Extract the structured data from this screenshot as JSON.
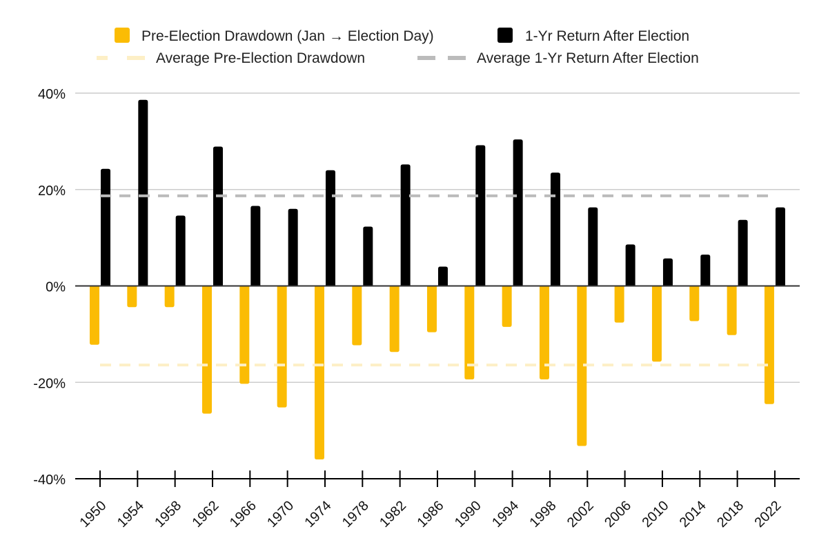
{
  "chart_data": {
    "type": "bar",
    "title": "",
    "xlabel": "",
    "ylabel": "",
    "ylim": [
      -40,
      40
    ],
    "yticks": [
      40,
      20,
      0,
      -20,
      -40
    ],
    "ytick_labels": [
      "40%",
      "20%",
      "0%",
      "-20%",
      "-40%"
    ],
    "grid": true,
    "legend_position": "top",
    "categories": [
      "1950",
      "1954",
      "1958",
      "1962",
      "1966",
      "1970",
      "1974",
      "1978",
      "1982",
      "1986",
      "1990",
      "1994",
      "1998",
      "2002",
      "2006",
      "2010",
      "2014",
      "2018",
      "2022"
    ],
    "series": [
      {
        "name": "Pre-Election Drawdown (Jan → Election Day)",
        "color": "#FBBC04",
        "values": [
          -12.2,
          -4.4,
          -4.4,
          -26.5,
          -20.3,
          -25.2,
          -36.0,
          -12.3,
          -13.7,
          -9.6,
          -19.4,
          -8.5,
          -19.4,
          -33.2,
          -7.6,
          -15.7,
          -7.3,
          -10.2,
          -24.5
        ]
      },
      {
        "name": "1-Yr Return After Election",
        "color": "#000000",
        "values": [
          24.3,
          38.6,
          14.6,
          28.9,
          16.6,
          16.0,
          24.0,
          12.3,
          25.2,
          4.0,
          29.2,
          30.4,
          23.5,
          16.3,
          8.6,
          5.7,
          6.5,
          13.7,
          16.3
        ]
      }
    ],
    "reference_lines": [
      {
        "name": "Average Pre-Election Drawdown",
        "value": -16.4,
        "color": "#FDEFC6",
        "style": "dashed"
      },
      {
        "name": "Average 1-Yr Return After Election",
        "value": 18.7,
        "color": "#BBBBBB",
        "style": "dashed"
      }
    ]
  },
  "legend": {
    "items": [
      {
        "label": "Pre-Election Drawdown (Jan → Election Day)",
        "icon": "yellow-square"
      },
      {
        "label": "1-Yr Return After Election",
        "icon": "black-square"
      },
      {
        "label": "Average Pre-Election Drawdown",
        "icon": "light-yellow-dashed-line"
      },
      {
        "label": "Average 1-Yr Return After Election",
        "icon": "gray-dashed-line"
      }
    ]
  }
}
